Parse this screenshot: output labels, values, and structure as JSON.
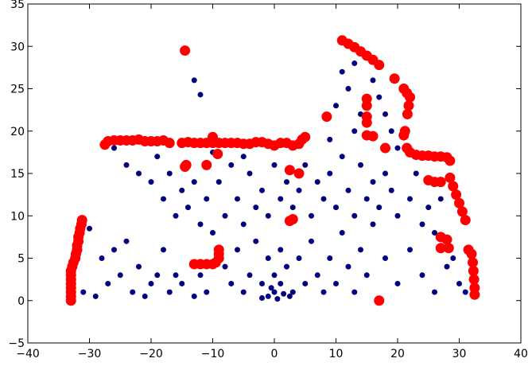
{
  "chart_data": {
    "type": "scatter",
    "xlim": [
      -40,
      40
    ],
    "ylim": [
      -5,
      35
    ],
    "xticks": [
      {
        "value": -40,
        "label": "−40"
      },
      {
        "value": -30,
        "label": "−30"
      },
      {
        "value": -20,
        "label": "−20"
      },
      {
        "value": -10,
        "label": "−10"
      },
      0,
      10,
      20,
      30,
      40
    ],
    "yticks": [
      {
        "value": -5,
        "label": "−5"
      },
      0,
      5,
      10,
      15,
      20,
      25,
      30,
      35
    ],
    "series": [
      {
        "color": "#000080",
        "size": 3,
        "x": [
          -30,
          -28,
          -26,
          -25,
          -24,
          -22,
          -20,
          -18,
          -16,
          -31,
          -29,
          -27,
          -23,
          -21,
          -19,
          -17,
          -15,
          -13,
          -12,
          -11,
          -26,
          -24,
          -22,
          -20,
          -19,
          -18,
          -17,
          -16,
          -15,
          -14,
          -13,
          -12,
          -11,
          -10,
          -9,
          -8,
          -7,
          -6,
          -5,
          -4,
          -3,
          -2,
          -1,
          0,
          1,
          2,
          3,
          4,
          5,
          6,
          7,
          8,
          9,
          10,
          11,
          12,
          13,
          14,
          15,
          16,
          17,
          18,
          19,
          20,
          22,
          24,
          25,
          26,
          -8,
          -7,
          -6,
          -5,
          -4,
          -3,
          -2,
          -1,
          0,
          0,
          1,
          1,
          2,
          3,
          4,
          5,
          6,
          7,
          8,
          9,
          10,
          11,
          12,
          13,
          14,
          15,
          16,
          18,
          20,
          22,
          24,
          26,
          28,
          30,
          -1,
          0.5,
          -0.5,
          1.5,
          -2,
          2.5,
          -13,
          -12,
          11,
          12,
          13,
          14,
          16,
          17,
          18,
          13,
          10,
          9,
          19,
          20,
          -5,
          -10,
          23,
          27,
          29,
          31
        ],
        "values": [
          8.5,
          5,
          6,
          3,
          7,
          4,
          2,
          6,
          3,
          1,
          0.5,
          2,
          1,
          0.5,
          3,
          1,
          2,
          0.5,
          3,
          1,
          18,
          16,
          15,
          14,
          17,
          12,
          15,
          10,
          13,
          11,
          14,
          9,
          12,
          8,
          14,
          10,
          16,
          12,
          9,
          15,
          11,
          13,
          10,
          16,
          12,
          14,
          11,
          13,
          16,
          10,
          14,
          12,
          15,
          11,
          17,
          13,
          10,
          16,
          12,
          14,
          11,
          15,
          13,
          10,
          12,
          9,
          11,
          8,
          4,
          2,
          6,
          1,
          3,
          7,
          2,
          5,
          1,
          3,
          2,
          6,
          4,
          1,
          5,
          2,
          7,
          3,
          1,
          5,
          2,
          8,
          4,
          1,
          6,
          3,
          9,
          5,
          2,
          6,
          3,
          1,
          4,
          2,
          0.5,
          0.2,
          1.5,
          0.8,
          0.3,
          0.5,
          26,
          24.3,
          27,
          25,
          28,
          22,
          26,
          24,
          22,
          20,
          23,
          19,
          20,
          18,
          17,
          17.5,
          15,
          12,
          5,
          1
        ]
      },
      {
        "color": "#ff0000",
        "size": 6,
        "x": [
          -33,
          -33,
          -33,
          -33,
          -33,
          -33,
          -33,
          -33,
          -32.8,
          -32.6,
          -32.3,
          -32.2,
          -32,
          -32,
          -31.8,
          -31.8,
          -31.6,
          -31.5,
          -31.3,
          -31.2,
          -27.5,
          -27,
          -26,
          -25,
          -24,
          -23,
          -22,
          -21,
          -20,
          -19,
          -18,
          -17,
          -14.5,
          -15,
          -14,
          -13,
          -12,
          -11,
          -10,
          -9,
          -8,
          -7,
          -6,
          -5,
          -4,
          -3,
          -2,
          -1,
          0,
          1,
          2,
          3,
          4,
          4.5,
          5,
          -10,
          -9.2,
          -14.3,
          -11,
          -14.5,
          -13,
          -12,
          -11,
          -10,
          -9.5,
          -9,
          -9,
          -9,
          2.5,
          4,
          3,
          2.5,
          8.5,
          11,
          12,
          13,
          14,
          15,
          16,
          17,
          19.5,
          15,
          15,
          15,
          15,
          15,
          16,
          18,
          17,
          21,
          21.5,
          22,
          21.8,
          21.6,
          21.2,
          21,
          21.5,
          22,
          23,
          24,
          25,
          26,
          27,
          28,
          28.5,
          25,
          26,
          27,
          28.5,
          29,
          29.5,
          30,
          30.5,
          31,
          27,
          28,
          27,
          28.3,
          31.5,
          32,
          32.2,
          32.3,
          32.4,
          32.5,
          32.5
        ],
        "values": [
          0,
          0.5,
          1,
          1.5,
          2,
          2.5,
          3,
          3.5,
          4,
          4.5,
          5,
          5.5,
          6,
          6.5,
          7,
          7.5,
          8,
          8.5,
          9,
          9.5,
          18.4,
          18.8,
          18.9,
          18.9,
          18.9,
          18.9,
          19,
          18.8,
          18.8,
          18.8,
          18.9,
          18.6,
          29.5,
          18.6,
          18.7,
          18.6,
          18.6,
          18.6,
          18.6,
          18.6,
          18.6,
          18.6,
          18.6,
          18.5,
          18.5,
          18.7,
          18.7,
          18.5,
          18.3,
          18.6,
          18.6,
          18.3,
          18.5,
          19,
          19.3,
          19.3,
          17.3,
          16,
          16,
          15.8,
          4.3,
          4.3,
          4.3,
          4.3,
          4.5,
          5,
          5.5,
          6,
          15.4,
          15,
          9.6,
          9.4,
          21.7,
          30.7,
          30.3,
          29.9,
          29.4,
          28.9,
          28.4,
          27.8,
          26.2,
          23.8,
          23,
          21.7,
          21,
          19.5,
          19.4,
          18,
          0,
          25,
          24.5,
          24,
          23,
          22,
          20,
          19.5,
          18,
          17.5,
          17.2,
          17.1,
          17.1,
          17,
          17,
          16.9,
          16.5,
          14.2,
          14,
          14,
          14.5,
          13.5,
          12.5,
          11.5,
          10.5,
          9.5,
          7.5,
          7.2,
          6.2,
          6.2,
          6,
          5.5,
          4.5,
          3.5,
          2.5,
          1.5,
          0.7
        ]
      }
    ]
  }
}
